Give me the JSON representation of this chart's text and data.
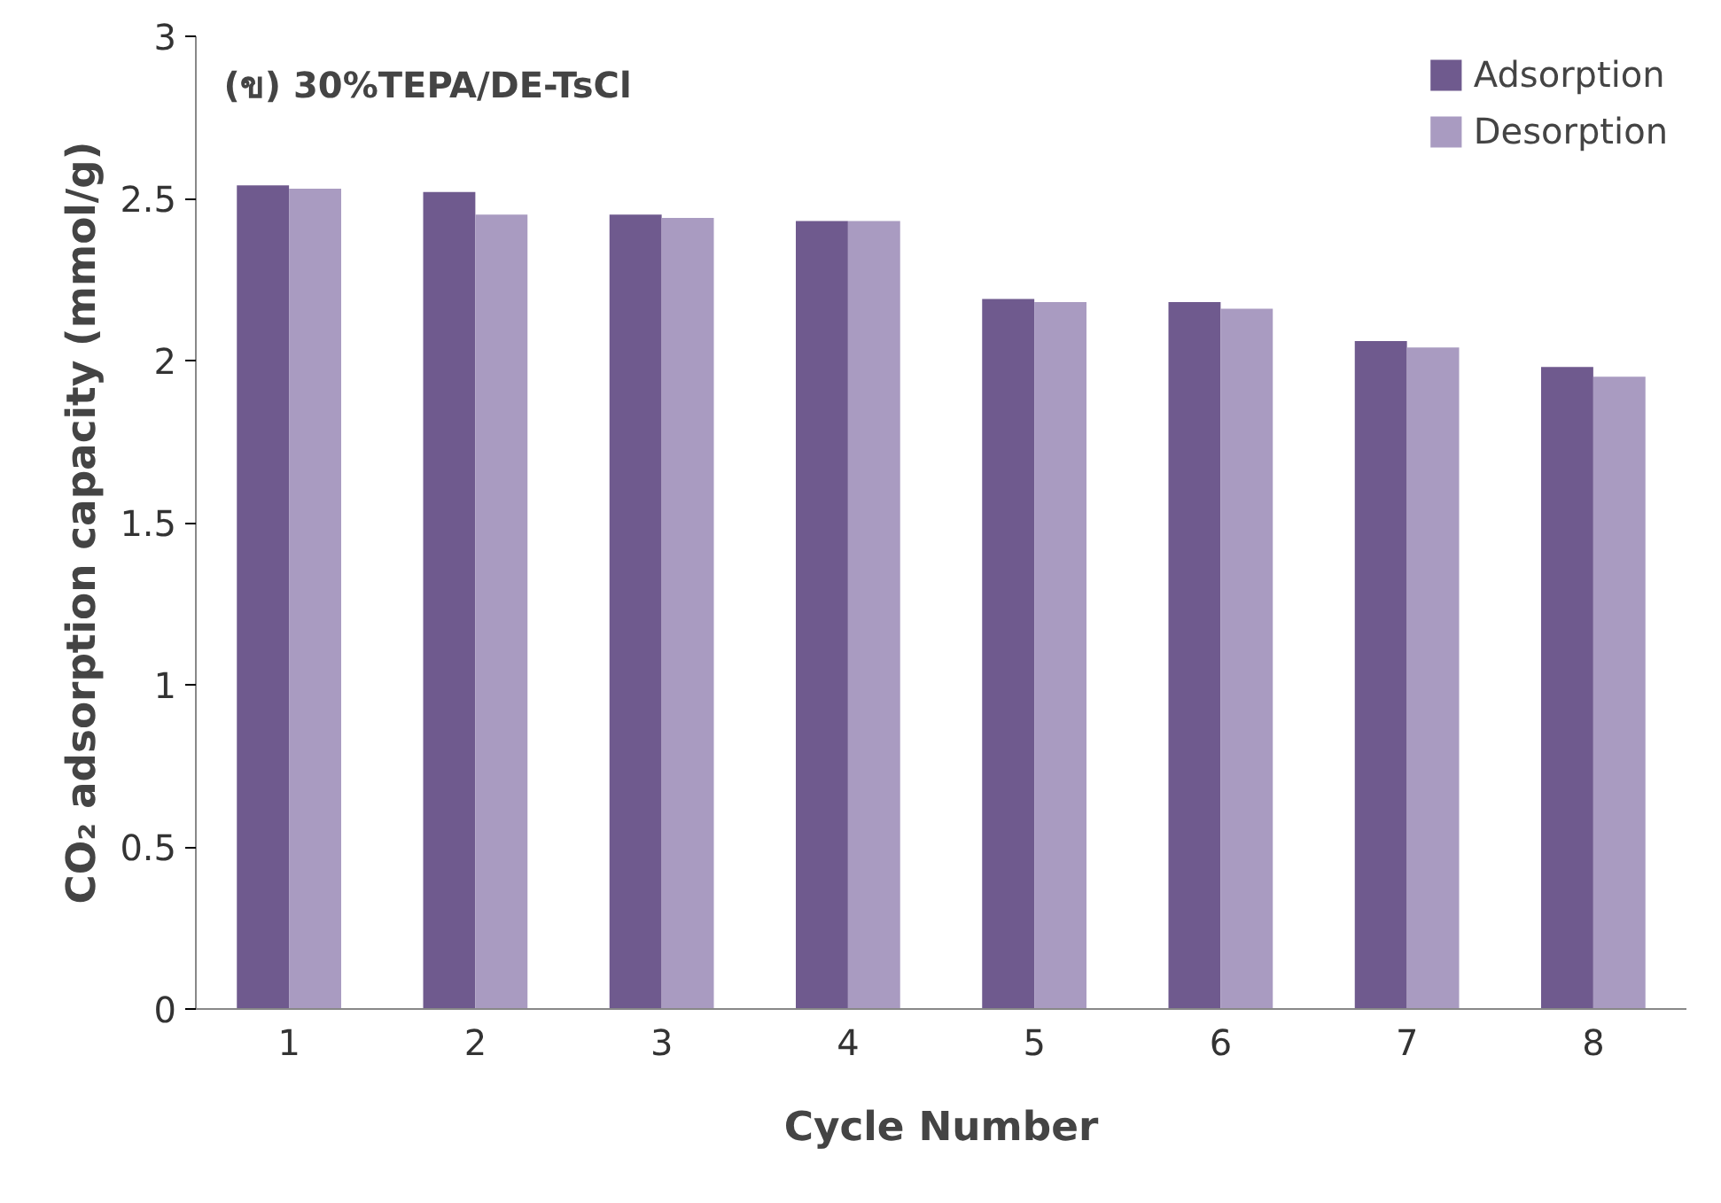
{
  "chart_data": {
    "type": "bar",
    "title": "(ข) 30%TEPA/DE-TsCl",
    "xlabel": "Cycle Number",
    "ylabel": "CO₂ adsorption capacity (mmol/g)",
    "categories": [
      "1",
      "2",
      "3",
      "4",
      "5",
      "6",
      "7",
      "8"
    ],
    "series": [
      {
        "name": "Adsorption",
        "color": "#6f5a8e",
        "values": [
          2.54,
          2.52,
          2.45,
          2.43,
          2.19,
          2.18,
          2.06,
          1.98
        ]
      },
      {
        "name": "Desorption",
        "color": "#a99bc1",
        "values": [
          2.53,
          2.45,
          2.44,
          2.43,
          2.18,
          2.16,
          2.04,
          1.95
        ]
      }
    ],
    "ylim": [
      0,
      3
    ],
    "yticks": [
      0,
      0.5,
      1,
      1.5,
      2,
      2.5,
      3
    ],
    "grid": false,
    "legend": "top right"
  }
}
